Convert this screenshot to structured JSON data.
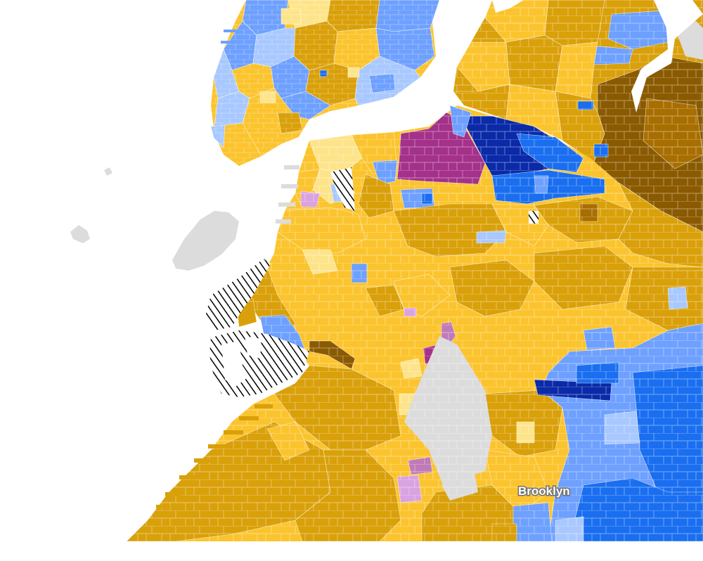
{
  "map": {
    "labels": {
      "brooklyn": "Brooklyn"
    },
    "palette": {
      "background": "#ffffff",
      "water": "#ffffff",
      "parks_no_data": "#dcdcdc",
      "gold_light": "#fbc42e",
      "gold_mid": "#d9a00a",
      "gold_dark": "#8a5a00",
      "gold_pale": "#fde48a",
      "blue_light": "#a8c8ff",
      "blue_mid": "#6ea0ff",
      "blue_bright": "#1a6ef0",
      "blue_dark": "#0a2aa8",
      "purple": "#a4318a",
      "pink": "#d9a2e0",
      "magenta": "#c07ab8",
      "hatch": "#000000"
    }
  }
}
